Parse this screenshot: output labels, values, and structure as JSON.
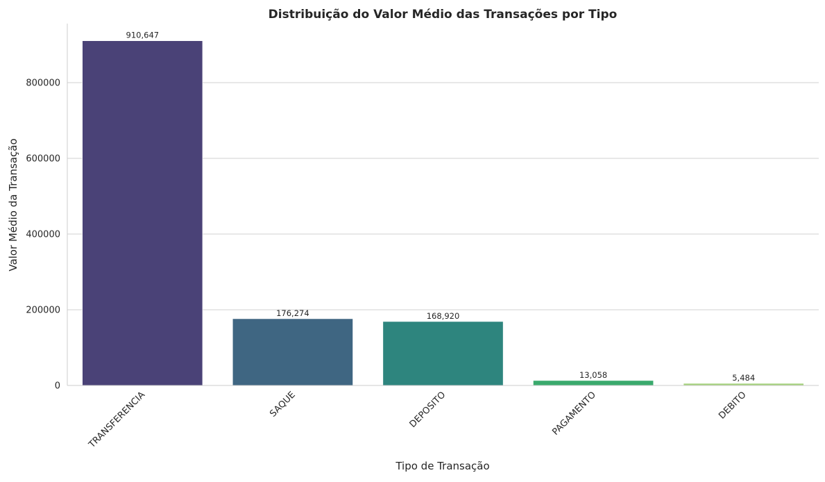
{
  "chart_data": {
    "type": "bar",
    "title": "Distribuição do Valor Médio das Transações por Tipo",
    "xlabel": "Tipo de Transação",
    "ylabel": "Valor Médio da Transação",
    "categories": [
      "TRANSFERENCIA",
      "SAQUE",
      "DEPOSITO",
      "PAGAMENTO",
      "DEBITO"
    ],
    "values": [
      910647,
      176274,
      168920,
      13058,
      5484
    ],
    "data_labels": [
      "910,647",
      "176,274",
      "168,920",
      "13,058",
      "5,484"
    ],
    "colors": [
      "#4a4277",
      "#3f6682",
      "#2e857e",
      "#3aaa6d",
      "#a4d17b"
    ],
    "ylim": [
      0,
      956000
    ],
    "yticks": [
      0,
      200000,
      400000,
      600000,
      800000
    ],
    "ytick_labels": [
      "0",
      "200000",
      "400000",
      "600000",
      "800000"
    ],
    "grid": "y",
    "legend": "none"
  }
}
